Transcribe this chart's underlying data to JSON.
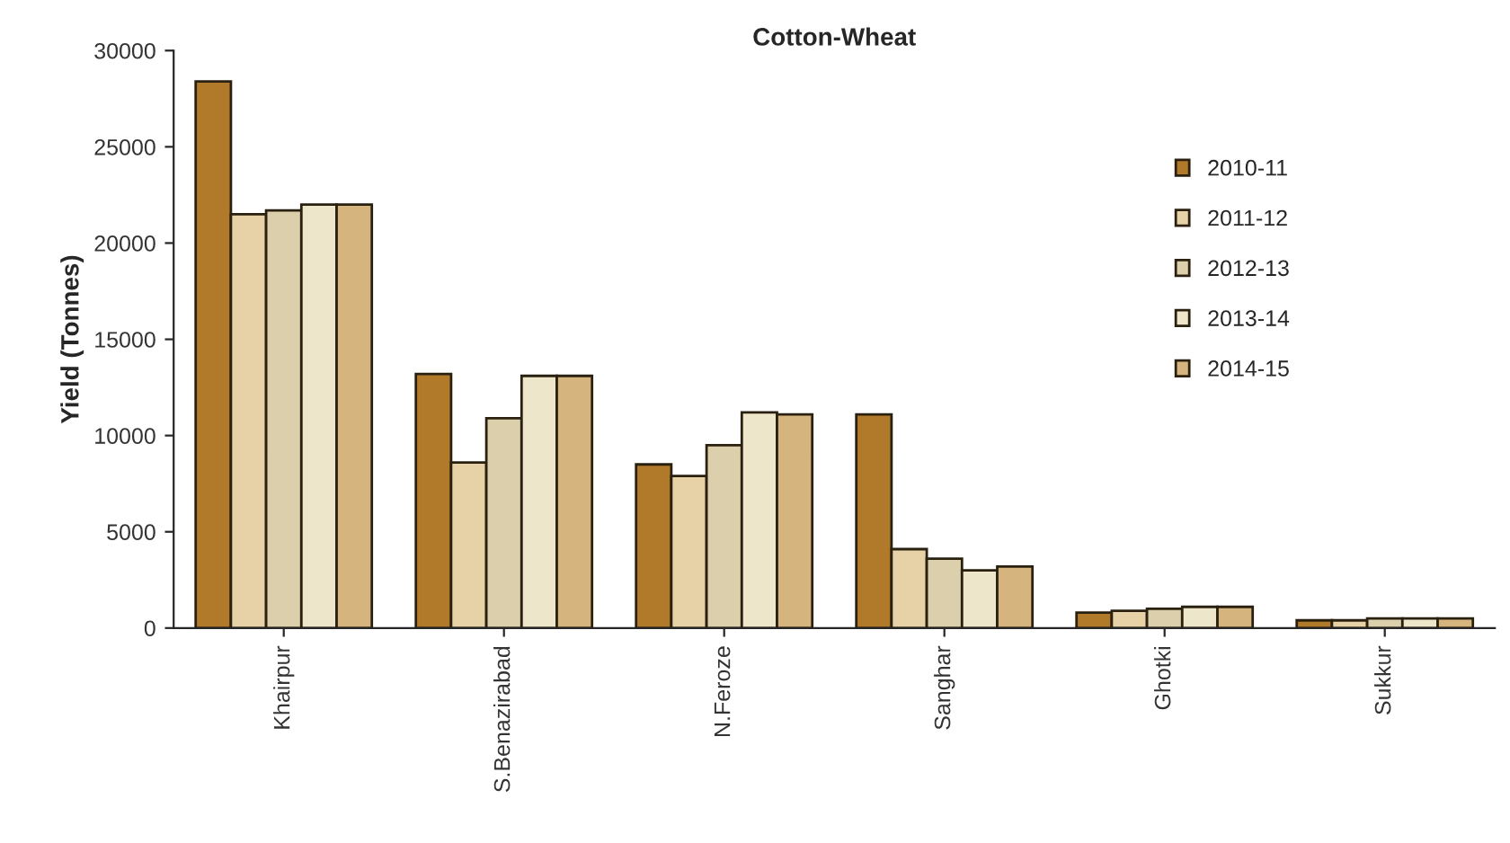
{
  "chart_data": {
    "type": "bar",
    "title": "Cotton-Wheat",
    "ylabel": "Yield (Tonnes)",
    "categories": [
      "Khairpur",
      "S.Benazirabad",
      "N.Feroze",
      "Sanghar",
      "Ghotki",
      "Sukkur"
    ],
    "series": [
      {
        "name": "2010-11",
        "color": "#b07a2a",
        "values": [
          28400,
          13200,
          8500,
          11100,
          800,
          400
        ]
      },
      {
        "name": "2011-12",
        "color": "#e6d2a6",
        "values": [
          21500,
          8600,
          7900,
          4100,
          900,
          400
        ]
      },
      {
        "name": "2012-13",
        "color": "#dcd0ac",
        "values": [
          21700,
          10900,
          9500,
          3600,
          1000,
          500
        ]
      },
      {
        "name": "2013-14",
        "color": "#eee6ca",
        "values": [
          22000,
          13100,
          11200,
          3000,
          1100,
          500
        ]
      },
      {
        "name": "2014-15",
        "color": "#d6b47e",
        "values": [
          22000,
          13100,
          11100,
          3200,
          1100,
          500
        ]
      }
    ],
    "ylim": [
      0,
      30000
    ],
    "yticks": [
      0,
      5000,
      10000,
      15000,
      20000,
      25000,
      30000
    ],
    "grid": false,
    "legend": "right"
  }
}
